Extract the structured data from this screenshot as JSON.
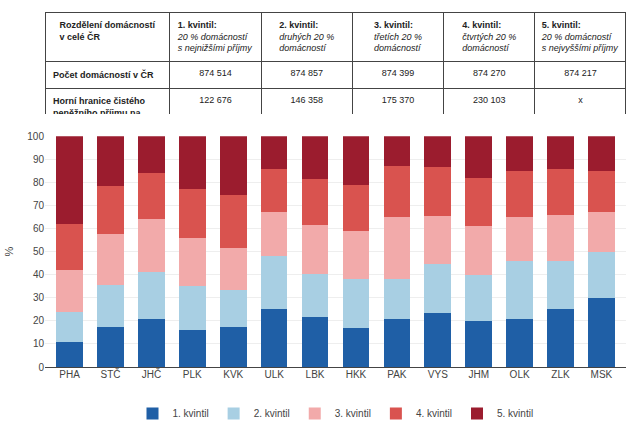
{
  "chart_data": {
    "type": "bar",
    "stacked": true,
    "categories": [
      "PHA",
      "STČ",
      "JHČ",
      "PLK",
      "KVK",
      "ULK",
      "LBK",
      "HKK",
      "PAK",
      "VYS",
      "JHM",
      "OLK",
      "ZLK",
      "MSK"
    ],
    "series": [
      {
        "name": "1. kvintil",
        "color": "#1f5fa6",
        "values": [
          11,
          17.5,
          21,
          16,
          17.5,
          25,
          21.5,
          17,
          21,
          23.5,
          20,
          21,
          25,
          30
        ]
      },
      {
        "name": "2. kvintil",
        "color": "#a8cfe3",
        "values": [
          13,
          18,
          20,
          19,
          16,
          23,
          19,
          21,
          17,
          21,
          20,
          25,
          21,
          20
        ]
      },
      {
        "name": "3. kvintil",
        "color": "#f2aaaa",
        "values": [
          18,
          22,
          23,
          21,
          18,
          19,
          21,
          21,
          27,
          21,
          21,
          19,
          20,
          17
        ]
      },
      {
        "name": "4. kvintil",
        "color": "#d9534f",
        "values": [
          20,
          21,
          20,
          21,
          23,
          19,
          20,
          20,
          22,
          21,
          21,
          20,
          20,
          18
        ]
      },
      {
        "name": "5. kvintil",
        "color": "#9b1c2e",
        "values": [
          38,
          21.5,
          16,
          23,
          25.5,
          14,
          18.5,
          21,
          13,
          13.5,
          18,
          15,
          14,
          15
        ]
      }
    ],
    "ylabel": "%",
    "ylim": [
      0,
      100
    ],
    "yticks": [
      0,
      10,
      20,
      30,
      40,
      50,
      60,
      70,
      80,
      90,
      100
    ],
    "grid": true,
    "legend": "bottom",
    "table": {
      "first_col_header": "Rozdělení domácností\nv celé ČR",
      "header_titles": [
        "1. kvintil:",
        "2. kvintil:",
        "3. kvintil:",
        "4. kvintil:",
        "5. kvintil:"
      ],
      "header_subs": [
        "20 % domácností\ns nejnižšími příjmy",
        "druhých 20 %\ndomácností",
        "třetích 20 %\ndomácností",
        "čtvrtých 20 %\ndomácností",
        "20 % domácností\ns nejvyššími příjmy"
      ],
      "rows": [
        {
          "label": "Počet domácností v ČR",
          "values": [
            "874 514",
            "874 857",
            "874 399",
            "874 270",
            "874 217"
          ]
        },
        {
          "label": "Horní hranice čistého\npeněžního příjmu na\nosobu v ČR (Kč)",
          "values": [
            "122 676",
            "146 358",
            "175 370",
            "230 103",
            "x"
          ]
        }
      ]
    }
  }
}
